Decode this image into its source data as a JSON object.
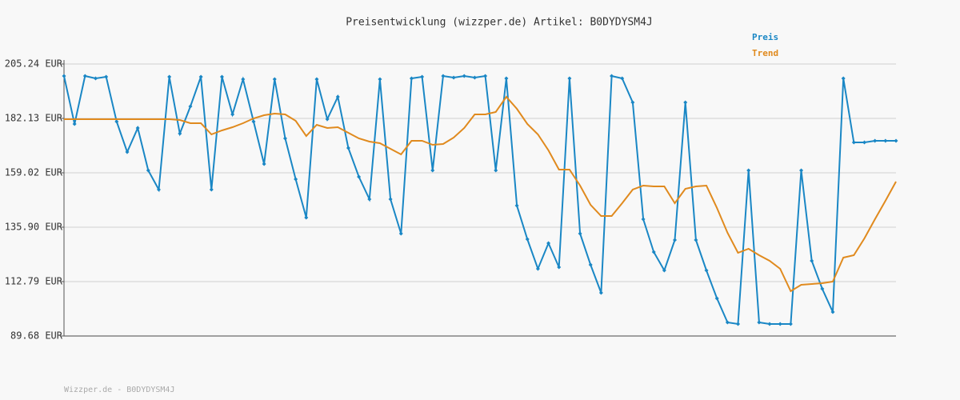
{
  "chart_data": {
    "type": "line",
    "title": "Preisentwicklung (wizzper.de) Artikel: B0DYDYSM4J",
    "footer": "Wizzper.de - B0DYDYSM4J",
    "legend": "top-right",
    "grid": true,
    "ylim": [
      89.68,
      205.24
    ],
    "yticks": [
      {
        "value": 89.68,
        "label": "89.68 EUR"
      },
      {
        "value": 112.79,
        "label": "112.79 EUR"
      },
      {
        "value": 135.9,
        "label": "135.90 EUR"
      },
      {
        "value": 159.02,
        "label": "159.02 EUR"
      },
      {
        "value": 182.13,
        "label": "182.13 EUR"
      },
      {
        "value": 205.24,
        "label": "205.24 EUR"
      }
    ],
    "series": [
      {
        "name": "Preis",
        "color": "#1a87c5",
        "markers": true,
        "values": [
          200.14,
          179.75,
          200.14,
          199.12,
          199.8,
          180.77,
          167.85,
          178.05,
          160.03,
          151.87,
          199.8,
          175.67,
          187.23,
          199.8,
          151.87,
          199.8,
          183.83,
          198.78,
          180.77,
          162.75,
          198.78,
          173.63,
          156.29,
          139.98,
          198.78,
          181.79,
          191.3,
          169.55,
          157.31,
          147.8,
          198.78,
          147.8,
          133.18,
          199.12,
          199.8,
          160.03,
          200.14,
          199.46,
          200.14,
          199.46,
          200.14,
          160.03,
          199.12,
          145.08,
          130.8,
          118.22,
          129.1,
          118.9,
          199.12,
          133.18,
          119.92,
          108.03,
          200.14,
          199.12,
          188.92,
          139.3,
          125.36,
          117.54,
          130.46,
          188.92,
          130.46,
          117.54,
          105.65,
          95.45,
          94.77,
          160.03,
          95.45,
          94.77,
          94.77,
          94.77,
          160.03,
          121.62,
          109.73,
          99.87,
          199.12,
          171.93,
          171.93,
          172.61,
          172.61,
          172.61
        ]
      },
      {
        "name": "Trend",
        "color": "#e08a1e",
        "markers": false,
        "values": [
          181.79,
          181.79,
          181.79,
          181.79,
          181.79,
          181.79,
          181.79,
          181.79,
          181.79,
          181.79,
          181.79,
          181.45,
          180.09,
          180.09,
          175.33,
          177.03,
          178.39,
          180.09,
          182.13,
          183.49,
          184.17,
          183.83,
          181.11,
          174.65,
          179.41,
          178.05,
          178.39,
          176.01,
          173.63,
          172.27,
          171.59,
          169.21,
          166.83,
          172.61,
          172.61,
          170.91,
          171.25,
          173.97,
          178.05,
          183.83,
          183.83,
          184.85,
          191.3,
          186.21,
          179.75,
          175.33,
          168.53,
          160.37,
          160.37,
          153.57,
          145.42,
          140.66,
          140.66,
          146.1,
          151.87,
          153.57,
          153.23,
          153.23,
          146.1,
          152.21,
          153.23,
          153.57,
          144.06,
          133.52,
          125.02,
          126.72,
          124.0,
          121.62,
          118.22,
          108.71,
          111.43,
          111.77,
          112.1,
          112.79,
          122.98,
          124.0,
          131.14,
          139.3,
          147.12,
          155.27
        ]
      }
    ]
  }
}
